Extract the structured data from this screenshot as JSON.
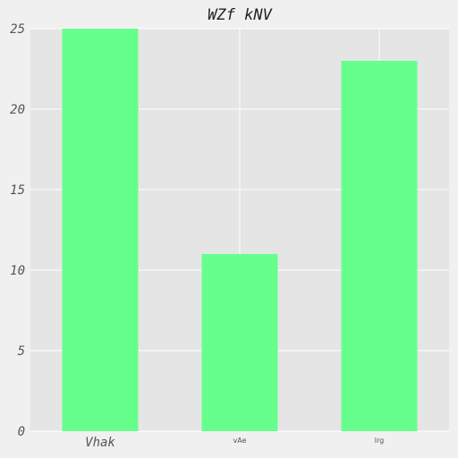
{
  "chart_data": {
    "type": "bar",
    "title": "WZf kNV",
    "categories": [
      "Vhak",
      "vAe",
      "lrg"
    ],
    "values": [
      25,
      11,
      23
    ],
    "xlabel": "",
    "ylabel": "",
    "ylim": [
      0,
      25
    ],
    "yticks": [
      "0",
      "5",
      "10",
      "15",
      "20",
      "25"
    ],
    "grid": true,
    "legend": "none",
    "colors": {
      "bar": "#66ff8c",
      "plot_background": "#e5e5e5",
      "figure_background": "#f0f0f0",
      "grid": "#ffffff"
    }
  }
}
